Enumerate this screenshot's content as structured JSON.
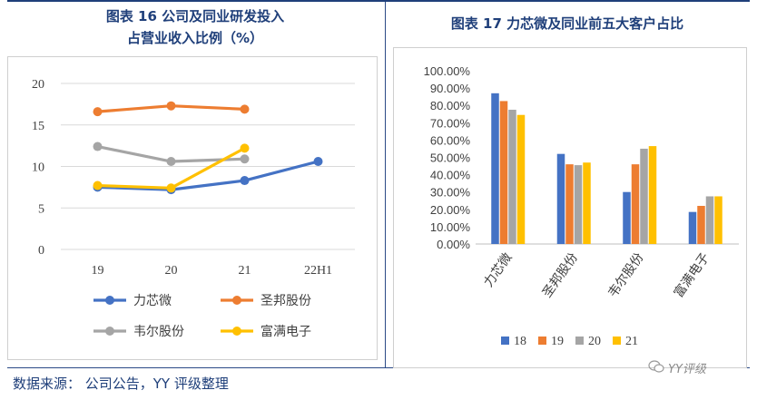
{
  "titles": {
    "left_line1": "图表 16 公司及同业研发投入",
    "left_line2": "占营业收入比例（%）",
    "right": "图表 17 力芯微及同业前五大客户占比"
  },
  "source": "数据来源： 公司公告，YY 评级整理",
  "watermark": "YY评级",
  "chart_data": [
    {
      "type": "line",
      "categories": [
        "19",
        "20",
        "21",
        "22H1"
      ],
      "ylim": [
        0,
        20
      ],
      "yticks": [
        0,
        5,
        10,
        15,
        20
      ],
      "series": [
        {
          "name": "力芯微",
          "color": "#4472c4",
          "values": [
            7.5,
            7.2,
            8.3,
            10.6
          ]
        },
        {
          "name": "圣邦股份",
          "color": "#ed7d31",
          "values": [
            16.6,
            17.3,
            16.9,
            null
          ]
        },
        {
          "name": "韦尔股份",
          "color": "#a5a5a5",
          "values": [
            12.4,
            10.6,
            10.9,
            null
          ]
        },
        {
          "name": "富满电子",
          "color": "#ffc000",
          "values": [
            7.7,
            7.4,
            12.2,
            null
          ]
        }
      ],
      "legend": "bottom"
    },
    {
      "type": "bar",
      "categories": [
        "力芯微",
        "圣邦股份",
        "韦尔股份",
        "富满电子"
      ],
      "ylim": [
        0,
        100
      ],
      "yticks": [
        "0.00%",
        "10.00%",
        "20.00%",
        "30.00%",
        "40.00%",
        "50.00%",
        "60.00%",
        "70.00%",
        "80.00%",
        "90.00%",
        "100.00%"
      ],
      "series": [
        {
          "name": "18",
          "color": "#4472c4",
          "values": [
            87,
            52,
            30,
            18.5
          ]
        },
        {
          "name": "19",
          "color": "#ed7d31",
          "values": [
            82.5,
            46,
            46,
            22
          ]
        },
        {
          "name": "20",
          "color": "#a5a5a5",
          "values": [
            77.5,
            45.5,
            55,
            27.5
          ]
        },
        {
          "name": "21",
          "color": "#ffc000",
          "values": [
            74.5,
            47,
            56.5,
            27.5
          ]
        }
      ],
      "legend": "bottom"
    }
  ]
}
